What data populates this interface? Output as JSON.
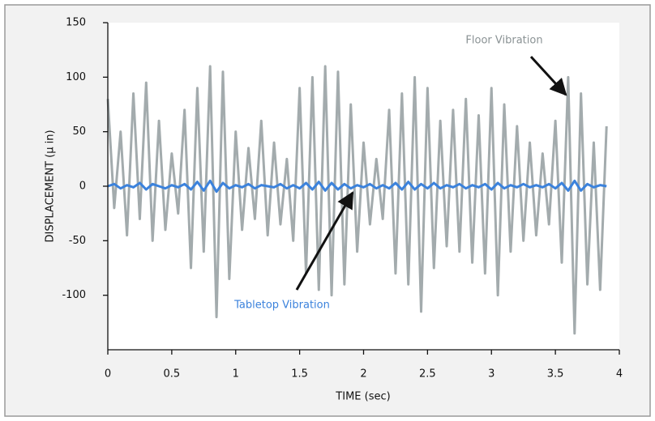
{
  "chart_data": {
    "type": "line",
    "x_label": "TIME (sec)",
    "y_label": "DISPLACEMENT (µ in)",
    "x": [
      0,
      0.05,
      0.1,
      0.15,
      0.2,
      0.25,
      0.3,
      0.35,
      0.4,
      0.45,
      0.5,
      0.55,
      0.6,
      0.65,
      0.7,
      0.75,
      0.8,
      0.85,
      0.9,
      0.95,
      1,
      1.05,
      1.1,
      1.15,
      1.2,
      1.25,
      1.3,
      1.35,
      1.4,
      1.45,
      1.5,
      1.55,
      1.6,
      1.65,
      1.7,
      1.75,
      1.8,
      1.85,
      1.9,
      1.95,
      2,
      2.05,
      2.1,
      2.15,
      2.2,
      2.25,
      2.3,
      2.35,
      2.4,
      2.45,
      2.5,
      2.55,
      2.6,
      2.65,
      2.7,
      2.75,
      2.8,
      2.85,
      2.9,
      2.95,
      3,
      3.05,
      3.1,
      3.15,
      3.2,
      3.25,
      3.3,
      3.35,
      3.4,
      3.45,
      3.5,
      3.55,
      3.6,
      3.65,
      3.7,
      3.75,
      3.8,
      3.85,
      3.9
    ],
    "series": [
      {
        "name": "Floor Vibration",
        "color": "#a3abad",
        "values": [
          80,
          -20,
          50,
          -45,
          85,
          -30,
          95,
          -50,
          60,
          -40,
          30,
          -25,
          70,
          -75,
          90,
          -60,
          110,
          -120,
          105,
          -85,
          50,
          -40,
          35,
          -30,
          60,
          -45,
          40,
          -35,
          25,
          -50,
          90,
          -80,
          100,
          -95,
          110,
          -100,
          105,
          -90,
          75,
          -60,
          40,
          -35,
          25,
          -30,
          70,
          -80,
          85,
          -90,
          100,
          -115,
          90,
          -75,
          60,
          -55,
          70,
          -60,
          80,
          -70,
          65,
          -80,
          90,
          -100,
          75,
          -60,
          55,
          -50,
          40,
          -45,
          30,
          -35,
          60,
          -70,
          100,
          -135,
          85,
          -90,
          40,
          -95,
          55
        ]
      },
      {
        "name": "Tabletop Vibration",
        "color": "#3b82dc",
        "values": [
          0,
          2,
          -2,
          1,
          -1,
          3,
          -3,
          2,
          0,
          -2,
          1,
          -1,
          2,
          -3,
          4,
          -4,
          5,
          -5,
          3,
          -2,
          1,
          -1,
          2,
          -2,
          1,
          0,
          -1,
          2,
          -2,
          1,
          -2,
          3,
          -3,
          4,
          -4,
          3,
          -3,
          2,
          -2,
          1,
          -1,
          2,
          -2,
          1,
          -2,
          3,
          -3,
          4,
          -3,
          2,
          -2,
          3,
          -2,
          1,
          -1,
          2,
          -2,
          1,
          -1,
          2,
          -3,
          3,
          -2,
          1,
          -1,
          2,
          -1,
          1,
          -1,
          2,
          -2,
          3,
          -4,
          5,
          -4,
          2,
          -1,
          1,
          0
        ]
      }
    ],
    "xlim": [
      0,
      4
    ],
    "xticks": [
      0,
      0.5,
      1,
      1.5,
      2,
      2.5,
      3,
      3.5,
      4
    ],
    "ylim": [
      -150,
      150
    ],
    "yticks": [
      -100,
      -50,
      0,
      50,
      100,
      150
    ],
    "grid": false
  }
}
